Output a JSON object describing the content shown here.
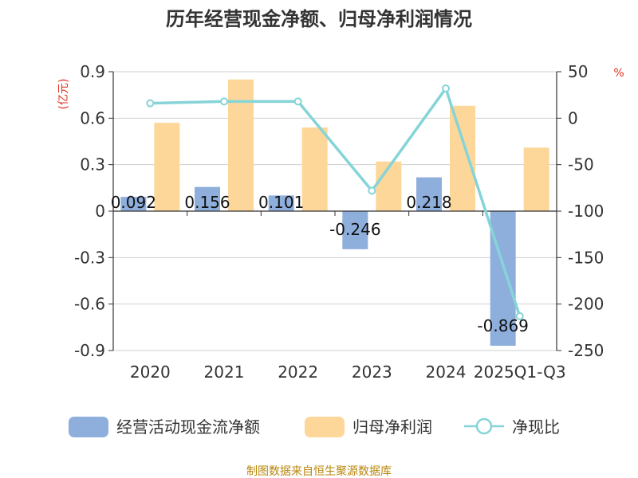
{
  "chart_data": {
    "type": "bar",
    "title": "历年经营现金净额、归母净利润情况",
    "categories": [
      "2020",
      "2021",
      "2022",
      "2023",
      "2024",
      "2025Q1-Q3"
    ],
    "series": [
      {
        "name": "经营活动现金流净额",
        "kind": "bar",
        "axis": "left",
        "color": "#8eaedc",
        "values": [
          0.092,
          0.156,
          0.101,
          -0.246,
          0.218,
          -0.869
        ],
        "labels": [
          "0.092",
          "0.156",
          "0.101",
          "-0.246",
          "0.218",
          "-0.869"
        ]
      },
      {
        "name": "归母净利润",
        "kind": "bar",
        "axis": "left",
        "color": "#fdd79a",
        "values": [
          0.57,
          0.85,
          0.54,
          0.32,
          0.68,
          0.41
        ]
      },
      {
        "name": "净现比",
        "kind": "line",
        "axis": "right",
        "color": "#86d4d8",
        "values": [
          16,
          18,
          18,
          -78,
          32,
          -213
        ]
      }
    ],
    "y_left": {
      "unit": "(亿元)",
      "ylim": [
        -0.9,
        0.9
      ],
      "ticks": [
        0.9,
        0.6,
        0.3,
        0,
        -0.3,
        -0.6,
        -0.9
      ],
      "tick_labels": [
        "0.9",
        "0.6",
        "0.3",
        "0",
        "-0.3",
        "-0.6",
        "-0.9"
      ]
    },
    "y_right": {
      "unit": "%",
      "ylim": [
        -250,
        50
      ],
      "ticks": [
        50,
        0,
        -50,
        -100,
        -150,
        -200,
        -250
      ],
      "tick_labels": [
        "50",
        "0",
        "-50",
        "-100",
        "-150",
        "-200",
        "-250"
      ]
    },
    "grid": true,
    "legend_position": "bottom"
  },
  "source": "制图数据来自恒生聚源数据库"
}
